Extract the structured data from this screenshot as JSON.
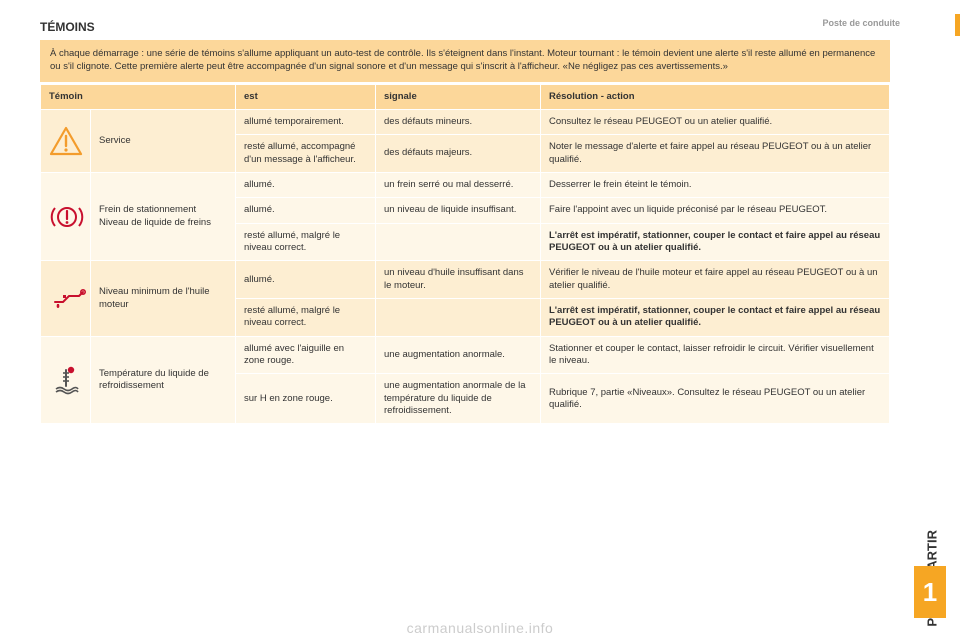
{
  "colors": {
    "accent": "#f6a623",
    "header_bg": "#fcd79a",
    "row_light": "#fdeed2",
    "row_lighter": "#fef7e8",
    "text": "#333333",
    "icon_orange": "#f39c2c",
    "icon_red": "#c8102e",
    "border": "#ffffff"
  },
  "header": {
    "section": "Poste de conduite",
    "title": "TÉMOINS",
    "intro": "À chaque démarrage : une série de témoins s'allume appliquant un auto-test de contrôle. Ils s'éteignent dans l'instant. Moteur tournant : le témoin devient une alerte s'il reste allumé en permanence ou s'il clignote. Cette première alerte peut être accompagnée d'un signal sonore et d'un message qui s'inscrit à l'afficheur. «Ne négligez pas ces avertissements.»"
  },
  "table": {
    "columns": {
      "temoin": "Témoin",
      "est": "est",
      "signale": "signale",
      "resolution": "Résolution - action"
    },
    "groups": [
      {
        "icon": "warning-triangle",
        "icon_color": "#f39c2c",
        "name": "Service",
        "shade": "light",
        "rows": [
          {
            "est": "allumé temporairement.",
            "signale": "des défauts mineurs.",
            "resolution": "Consultez le réseau PEUGEOT ou un atelier qualifié."
          },
          {
            "est": "resté allumé, accompagné d'un message à l'afficheur.",
            "signale": "des défauts majeurs.",
            "resolution": "Noter le message d'alerte et faire appel au réseau PEUGEOT ou à un atelier qualifié."
          }
        ]
      },
      {
        "icon": "brake",
        "icon_color": "#c8102e",
        "name": "Frein de stationnement Niveau de liquide de freins",
        "shade": "lighter",
        "rows": [
          {
            "est": "allumé.",
            "signale": "un frein serré ou mal desserré.",
            "resolution": "Desserrer le frein éteint le témoin."
          },
          {
            "est": "allumé.",
            "signale": "un niveau de liquide insuffisant.",
            "resolution": "Faire l'appoint avec un liquide préconisé par le réseau PEUGEOT."
          },
          {
            "est": "resté allumé, malgré le niveau correct.",
            "signale": "",
            "resolution_bold": true,
            "resolution": "L'arrêt est impératif, stationner, couper le contact et faire appel au réseau PEUGEOT ou à un atelier qualifié."
          }
        ]
      },
      {
        "icon": "oil",
        "icon_color": "#c8102e",
        "name": "Niveau minimum de l'huile moteur",
        "shade": "light",
        "rows": [
          {
            "est": "allumé.",
            "signale": "un niveau d'huile insuffisant dans le moteur.",
            "resolution": "Vérifier le niveau de l'huile moteur et faire appel au réseau PEUGEOT ou à un atelier qualifié."
          },
          {
            "est": "resté allumé, malgré le niveau correct.",
            "signale": "",
            "resolution_bold": true,
            "resolution": "L'arrêt est impératif, stationner, couper le contact et faire appel au réseau PEUGEOT ou à un atelier qualifié."
          }
        ]
      },
      {
        "icon": "temp",
        "icon_color": "#c8102e",
        "name": "Température du liquide de refroidissement",
        "shade": "lighter",
        "rows": [
          {
            "est": "allumé avec l'aiguille en zone rouge.",
            "signale": "une augmentation anormale.",
            "resolution": "Stationner et couper le contact, laisser refroidir le circuit. Vérifier visuellement le niveau."
          },
          {
            "est": "sur H en zone rouge.",
            "signale": "une augmentation anormale de la température du liquide de refroidissement.",
            "resolution": "Rubrique 7, partie «Niveaux».\nConsultez le réseau PEUGEOT ou un atelier qualifié."
          }
        ]
      }
    ]
  },
  "sidebar": {
    "label": "PRÊT à PARTIR",
    "number": "1"
  },
  "watermark": "carmanualsonline.info"
}
